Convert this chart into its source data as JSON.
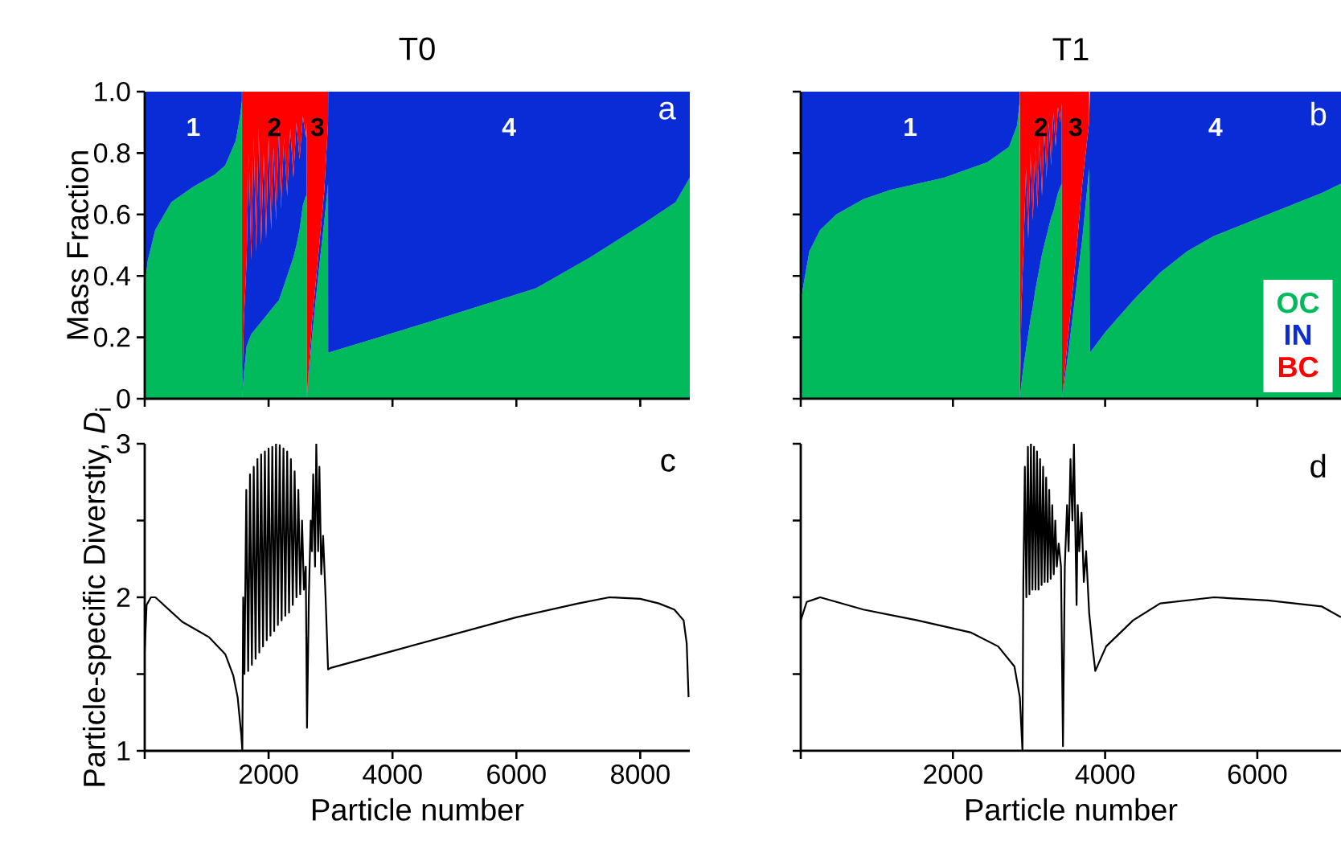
{
  "chart_data": [
    {
      "type": "area",
      "stacked": true,
      "title": "T0",
      "ylabel": "Mass Fraction",
      "tick_labels": "y",
      "x": [
        0,
        50,
        170,
        430,
        780,
        1130,
        1300,
        1470,
        1540,
        1569,
        1571,
        1600,
        1645,
        1680,
        1720,
        1760,
        1800,
        1840,
        1880,
        1920,
        1960,
        2000,
        2040,
        2080,
        2120,
        2165,
        2200,
        2250,
        2300,
        2350,
        2400,
        2450,
        2500,
        2554,
        2600,
        2614,
        2616,
        2700,
        2800,
        2900,
        2960,
        2962,
        4589,
        6320,
        7190,
        8052,
        8571,
        8800
      ],
      "series": [
        {
          "color": "#00BA5C",
          "values": [
            0.37,
            0.45,
            0.55,
            0.64,
            0.69,
            0.73,
            0.76,
            0.84,
            0.92,
            0.97,
            0,
            0.08,
            0.17,
            0.19,
            0.21,
            0.22,
            0.23,
            0.24,
            0.25,
            0.26,
            0.27,
            0.28,
            0.29,
            0.3,
            0.31,
            0.32,
            0.34,
            0.37,
            0.4,
            0.43,
            0.46,
            0.5,
            0.55,
            0.63,
            0.66,
            0.66,
            0,
            0.2,
            0.4,
            0.58,
            0.7,
            0.15,
            0.25,
            0.36,
            0.46,
            0.57,
            0.64,
            0.72
          ]
        },
        {
          "color": "#0A2CD6",
          "values": [
            0.63,
            0.55,
            0.45,
            0.36,
            0.31,
            0.27,
            0.24,
            0.16,
            0.08,
            0.03,
            0,
            0.17,
            0.28,
            0.61,
            0.24,
            0.63,
            0.25,
            0.64,
            0.25,
            0.54,
            0.25,
            0.57,
            0.26,
            0.52,
            0.27,
            0.56,
            0.28,
            0.48,
            0.26,
            0.45,
            0.26,
            0.4,
            0.23,
            0.29,
            0.19,
            0.24,
            0,
            0.05,
            0.06,
            0.1,
            0.2,
            0.85,
            0.75,
            0.64,
            0.54,
            0.43,
            0.36,
            0.28
          ]
        },
        {
          "color": "#FF0000",
          "values": [
            null,
            null,
            null,
            null,
            null,
            null,
            null,
            null,
            null,
            null,
            1,
            0.75,
            0.55,
            0.2,
            0.55,
            0.15,
            0.52,
            0.12,
            0.5,
            0.2,
            0.48,
            0.15,
            0.45,
            0.18,
            0.42,
            0.12,
            0.38,
            0.15,
            0.34,
            0.12,
            0.28,
            0.1,
            0.22,
            0.08,
            0.15,
            0.1,
            1,
            0.75,
            0.54,
            0.32,
            0.1,
            null,
            null,
            null,
            null,
            null,
            null,
            null
          ]
        }
      ],
      "xlim": [
        0,
        8800
      ],
      "ylim": [
        0,
        1
      ],
      "xticks": [
        0,
        2000,
        4000,
        6000,
        8000
      ],
      "yticks": [
        0,
        0.2,
        0.4,
        0.6,
        0.8,
        {
          "value": 1,
          "label": "1.0"
        }
      ],
      "annotations": [
        "1",
        "2",
        "3",
        "4",
        "a"
      ]
    },
    {
      "type": "area",
      "stacked": true,
      "title": "T1",
      "tick_labels": false,
      "legend": "bottom right",
      "x": [
        0,
        28,
        113,
        255,
        468,
        823,
        1177,
        1886,
        2453,
        2737,
        2843,
        2878,
        2880,
        2900,
        2930,
        2960,
        2990,
        3020,
        3050,
        3080,
        3110,
        3140,
        3170,
        3200,
        3230,
        3260,
        3290,
        3320,
        3350,
        3380,
        3410,
        3430,
        3434,
        3500,
        3600,
        3700,
        3790,
        3800,
        4013,
        4368,
        4722,
        5076,
        5431,
        6140,
        6849,
        7100
      ],
      "series": [
        {
          "name": "OC",
          "color": "#00BA5C",
          "values": [
            0.3,
            0.36,
            0.48,
            0.55,
            0.6,
            0.65,
            0.68,
            0.72,
            0.77,
            0.82,
            0.89,
            0.97,
            0,
            0.05,
            0.11,
            0.16,
            0.21,
            0.26,
            0.3,
            0.35,
            0.39,
            0.43,
            0.47,
            0.5,
            0.53,
            0.56,
            0.59,
            0.61,
            0.64,
            0.67,
            0.69,
            0.7,
            0,
            0.12,
            0.32,
            0.52,
            0.75,
            0.15,
            0.22,
            0.32,
            0.41,
            0.48,
            0.53,
            0.6,
            0.67,
            0.7
          ]
        },
        {
          "name": "IN",
          "color": "#0A2CD6",
          "values": [
            0.7,
            0.64,
            0.52,
            0.45,
            0.4,
            0.35,
            0.32,
            0.28,
            0.23,
            0.18,
            0.11,
            0.03,
            0,
            0.25,
            0.39,
            0.59,
            0.31,
            0.54,
            0.28,
            0.47,
            0.23,
            0.42,
            0.19,
            0.38,
            0.19,
            0.34,
            0.17,
            0.32,
            0.18,
            0.28,
            0.21,
            0.26,
            0,
            0.05,
            0.1,
            0.18,
            0.15,
            0.85,
            0.78,
            0.68,
            0.59,
            0.52,
            0.47,
            0.4,
            0.33,
            0.3
          ]
        },
        {
          "name": "BC",
          "color": "#FF0000",
          "values": [
            null,
            null,
            null,
            null,
            null,
            null,
            null,
            null,
            null,
            null,
            null,
            null,
            1,
            0.7,
            0.5,
            0.25,
            0.48,
            0.2,
            0.42,
            0.18,
            0.38,
            0.15,
            0.34,
            0.12,
            0.28,
            0.1,
            0.24,
            0.07,
            0.18,
            0.05,
            0.1,
            0.04,
            1,
            0.83,
            0.58,
            0.3,
            0.1,
            null,
            null,
            null,
            null,
            null,
            null,
            null,
            null,
            null
          ]
        }
      ],
      "xlim": [
        0,
        7100
      ],
      "ylim": [
        0,
        1
      ],
      "xticks": [
        0,
        2000,
        4000,
        6000
      ],
      "yticks": [
        0,
        0.2,
        0.4,
        0.6,
        0.8,
        1
      ],
      "annotations": [
        "1",
        "2",
        "3",
        "4",
        "b"
      ]
    },
    {
      "type": "line",
      "xlabel": "Particle number",
      "ylabel": "Particle-specific Diverstiy, *D*$_{i}$",
      "x": [
        0,
        30,
        100,
        173,
        606,
        1040,
        1300,
        1430,
        1500,
        1560,
        1576,
        1590,
        1610,
        1640,
        1670,
        1700,
        1730,
        1760,
        1790,
        1820,
        1850,
        1880,
        1910,
        1940,
        1970,
        2000,
        2030,
        2060,
        2090,
        2120,
        2150,
        2180,
        2210,
        2240,
        2270,
        2300,
        2330,
        2360,
        2390,
        2420,
        2450,
        2480,
        2510,
        2540,
        2570,
        2600,
        2620,
        2650,
        2680,
        2700,
        2720,
        2750,
        2770,
        2800,
        2820,
        2850,
        2880,
        2920,
        2960,
        3000,
        4000,
        5000,
        6000,
        7000,
        7500,
        8000,
        8300,
        8550,
        8700,
        8750,
        8780
      ],
      "series": [
        {
          "color": "#000000",
          "values": [
            1.65,
            1.95,
            2.0,
            2.0,
            1.84,
            1.74,
            1.63,
            1.49,
            1.35,
            1.1,
            1.0,
            2.0,
            1.5,
            2.7,
            1.52,
            2.8,
            1.56,
            2.85,
            1.6,
            2.9,
            1.64,
            2.93,
            1.68,
            2.95,
            1.72,
            2.97,
            1.75,
            2.98,
            1.78,
            3.0,
            1.82,
            2.99,
            1.85,
            2.97,
            1.88,
            2.95,
            1.9,
            2.9,
            1.95,
            2.82,
            2.0,
            2.7,
            2.02,
            2.5,
            2.05,
            2.2,
            1.15,
            2.0,
            2.5,
            2.3,
            2.8,
            2.2,
            3.0,
            2.3,
            2.85,
            2.15,
            2.4,
            2.0,
            1.53,
            1.54,
            1.65,
            1.76,
            1.87,
            1.96,
            2.0,
            1.99,
            1.96,
            1.92,
            1.85,
            1.7,
            1.35
          ]
        }
      ],
      "xlim": [
        0,
        8800
      ],
      "ylim": [
        1,
        3
      ],
      "xticks": [
        {
          "value": 0,
          "label": null
        },
        2000,
        4000,
        6000,
        8000
      ],
      "yticks": [
        1,
        {
          "value": 1.5,
          "label": null
        },
        2,
        {
          "value": 2.5,
          "label": null
        },
        3
      ],
      "annotations": [
        "c"
      ]
    },
    {
      "type": "line",
      "xlabel": "Particle number",
      "tick_labels": "x",
      "x": [
        0,
        78,
        255,
        823,
        1532,
        2240,
        2595,
        2808,
        2879,
        2914,
        2925,
        2945,
        2965,
        2985,
        3005,
        3025,
        3045,
        3065,
        3085,
        3105,
        3125,
        3145,
        3165,
        3185,
        3205,
        3225,
        3245,
        3265,
        3285,
        3305,
        3325,
        3345,
        3365,
        3390,
        3420,
        3446,
        3470,
        3500,
        3520,
        3545,
        3570,
        3590,
        3610,
        3625,
        3640,
        3660,
        3690,
        3720,
        3750,
        3790,
        3830,
        3871,
        4013,
        4368,
        4722,
        5431,
        6140,
        6849,
        7100
      ],
      "series": [
        {
          "color": "#000000",
          "values": [
            1.85,
            1.97,
            2.0,
            1.92,
            1.85,
            1.77,
            1.68,
            1.55,
            1.35,
            1.0,
            2.1,
            2.85,
            2.0,
            2.98,
            2.02,
            3.0,
            2.05,
            2.98,
            2.05,
            2.95,
            2.05,
            2.9,
            2.08,
            2.85,
            2.1,
            2.78,
            2.1,
            2.7,
            2.12,
            2.6,
            2.15,
            2.5,
            2.2,
            2.35,
            2.2,
            1.03,
            2.2,
            2.6,
            2.3,
            2.9,
            2.5,
            3.0,
            2.4,
            1.95,
            2.6,
            2.3,
            2.55,
            2.1,
            2.3,
            1.9,
            1.7,
            1.52,
            1.68,
            1.85,
            1.96,
            2.0,
            1.98,
            1.94,
            1.87
          ]
        }
      ],
      "xlim": [
        0,
        7100
      ],
      "ylim": [
        1,
        3
      ],
      "xticks": [
        {
          "value": 0,
          "label": null
        },
        2000,
        4000,
        6000
      ],
      "yticks": [
        1,
        1.5,
        2,
        2.5,
        3
      ],
      "annotations": [
        "d"
      ]
    }
  ]
}
